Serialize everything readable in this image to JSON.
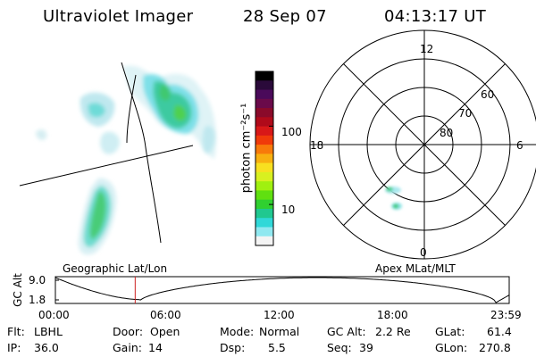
{
  "header": {
    "instrument": "Ultraviolet Imager",
    "date": "28 Sep 07",
    "time": "04:13:17 UT"
  },
  "left_panel": {
    "caption": "Geographic Lat/Lon"
  },
  "colorbar": {
    "label": "photon cm⁻²s⁻¹",
    "ticks": [
      "100",
      "10"
    ],
    "colors": [
      "#000000",
      "#2a0a3a",
      "#4a0a5a",
      "#6a0a4a",
      "#8a0a2a",
      "#b00a1a",
      "#d81818",
      "#f03a0a",
      "#f87a0a",
      "#f8b010",
      "#f8e020",
      "#d8f020",
      "#a0f010",
      "#60e010",
      "#30d030",
      "#20c890",
      "#30d8d8",
      "#90e8f0",
      "#f4f4f4"
    ],
    "log_range": [
      3,
      500
    ]
  },
  "right_panel": {
    "caption": "Apex MLat/MLT",
    "lat_labels": [
      "60",
      "70",
      "80"
    ],
    "mlt_labels": [
      "12",
      "18",
      "6",
      "0"
    ]
  },
  "timeline": {
    "ylabel": "GC Alt",
    "yticks": [
      "9.0",
      "1.8"
    ],
    "xticks": [
      "00:00",
      "06:00",
      "12:00",
      "18:00",
      "23:59"
    ],
    "current_time_hours": 4.22,
    "marker_color": "#cc2222"
  },
  "info": {
    "flt_label": "Flt:",
    "flt_value": "LBHL",
    "ip_label": "IP:",
    "ip_value": "36.0",
    "door_label": "Door:",
    "door_value": "Open",
    "gain_label": "Gain:",
    "gain_value": "14",
    "mode_label": "Mode:",
    "mode_value": "Normal",
    "dsp_label": "Dsp:",
    "dsp_value": "5.5",
    "gcalt_label": "GC Alt:",
    "gcalt_value": "2.2 Re",
    "seq_label": "Seq:",
    "seq_value": "39",
    "glat_label": "GLat:",
    "glat_value": "61.4",
    "glon_label": "GLon:",
    "glon_value": "270.8"
  }
}
